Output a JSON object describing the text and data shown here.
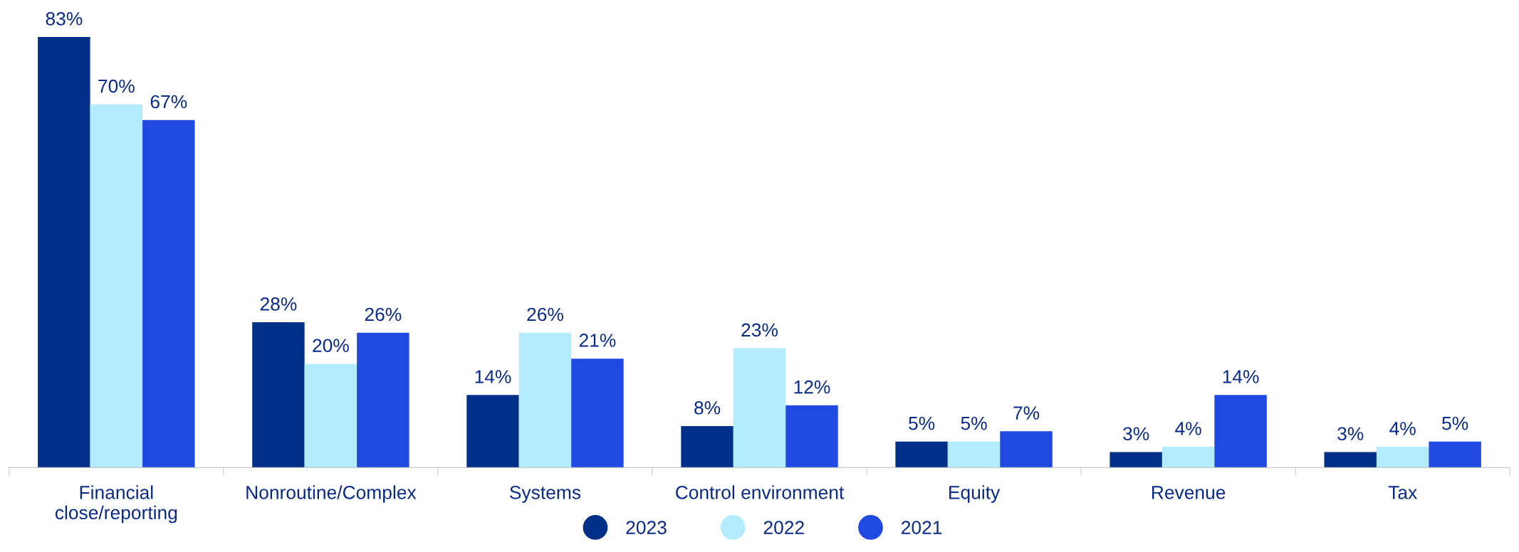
{
  "chart_data": {
    "type": "bar",
    "categories": [
      "Financial\nclose/reporting",
      "Nonroutine/Complex",
      "Systems",
      "Control environment",
      "Equity",
      "Revenue",
      "Tax"
    ],
    "series": [
      {
        "name": "2023",
        "color": "#003087",
        "values": [
          83,
          28,
          14,
          8,
          5,
          3,
          3
        ],
        "value_labels": [
          "83%",
          "28%",
          "14%",
          "8%",
          "5%",
          "3%",
          "3%"
        ]
      },
      {
        "name": "2022",
        "color": "#b3ecff",
        "values": [
          70,
          20,
          26,
          23,
          5,
          4,
          4
        ],
        "value_labels": [
          "70%",
          "20%",
          "26%",
          "23%",
          "5%",
          "4%",
          "4%"
        ]
      },
      {
        "name": "2021",
        "color": "#1f49e0",
        "values": [
          67,
          26,
          21,
          12,
          7,
          14,
          5
        ],
        "value_labels": [
          "67%",
          "26%",
          "21%",
          "12%",
          "7%",
          "14%",
          "5%"
        ]
      }
    ],
    "legend": "bottom",
    "marker": "circle",
    "grid": false
  }
}
